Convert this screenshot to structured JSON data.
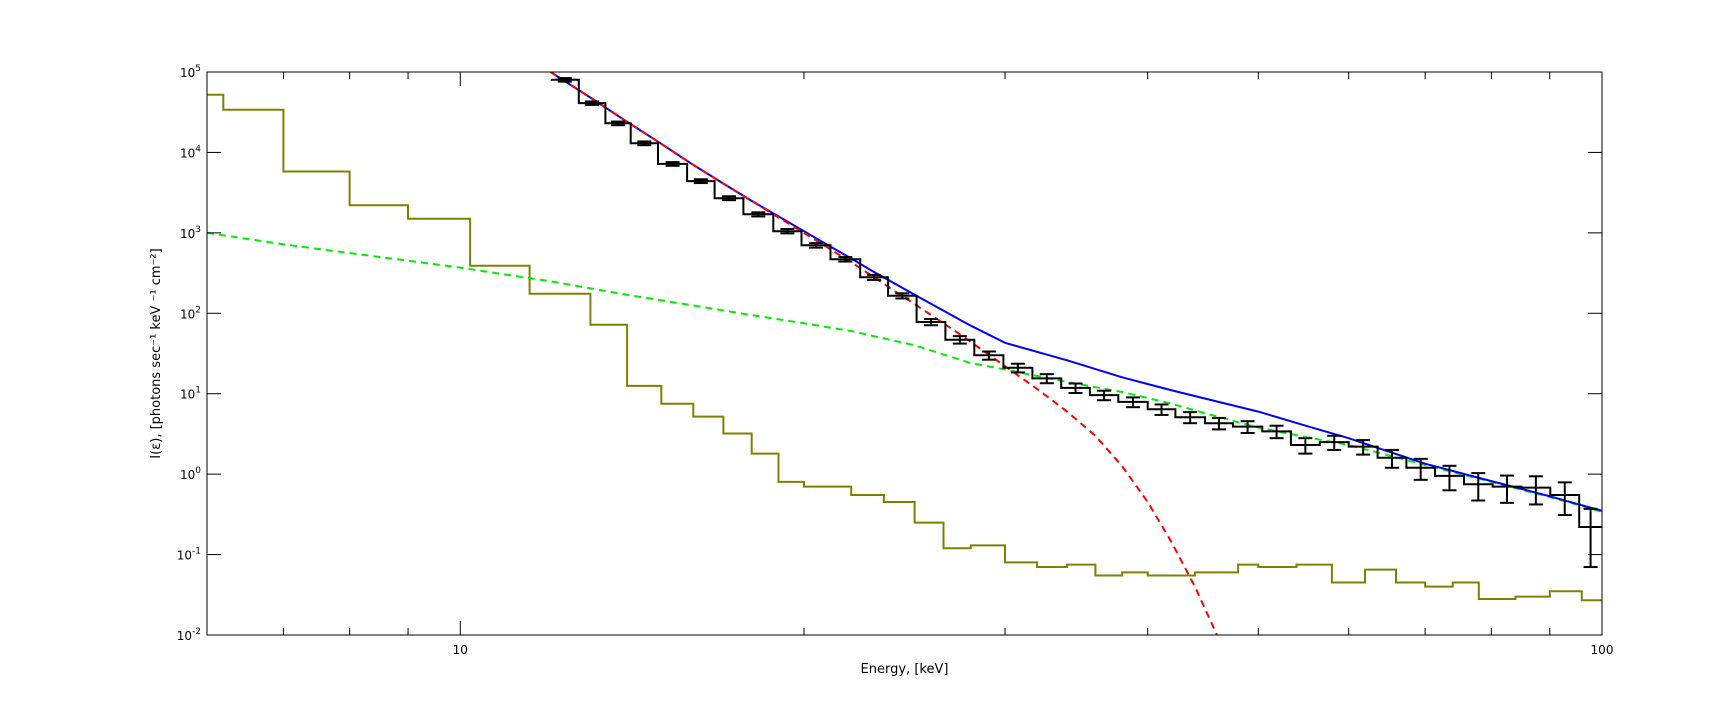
{
  "chart_data": {
    "type": "line",
    "title": "",
    "xlabel": "Energy, [keV]",
    "ylabel": "I(ε), [photons sec⁻¹ keV ⁻¹ cm⁻²]",
    "xscale": "log",
    "yscale": "log",
    "xlim": [
      6,
      100
    ],
    "ylim": [
      0.01,
      100000
    ],
    "xticks": [
      {
        "value": 10,
        "label": "10"
      },
      {
        "value": 100,
        "label": "100"
      }
    ],
    "yticks": [
      {
        "value": 0.01,
        "mantissa": "10",
        "exp": "-2"
      },
      {
        "value": 0.1,
        "mantissa": "10",
        "exp": "-1"
      },
      {
        "value": 1,
        "mantissa": "10",
        "exp": "0"
      },
      {
        "value": 10,
        "mantissa": "10",
        "exp": "1"
      },
      {
        "value": 100,
        "mantissa": "10",
        "exp": "2"
      },
      {
        "value": 1000,
        "mantissa": "10",
        "exp": "3"
      },
      {
        "value": 10000,
        "mantissa": "10",
        "exp": "4"
      },
      {
        "value": 100000,
        "mantissa": "10",
        "exp": "5"
      }
    ],
    "grid": false,
    "legend": "none",
    "colors": {
      "data": "#000000",
      "total_fit": "#0000ff",
      "thermal": "#ff0000",
      "nonthermal": "#00ee00",
      "background": "#808000"
    },
    "series": [
      {
        "style": "histogram-with-errorbars",
        "color_key": "data",
        "bins": [
          {
            "lo": 12.0,
            "hi": 12.7,
            "y": 80000,
            "err": 4000
          },
          {
            "lo": 12.7,
            "hi": 13.4,
            "y": 41000,
            "err": 2000
          },
          {
            "lo": 13.4,
            "hi": 14.1,
            "y": 23000,
            "err": 1200
          },
          {
            "lo": 14.1,
            "hi": 14.9,
            "y": 13000,
            "err": 700
          },
          {
            "lo": 14.9,
            "hi": 15.8,
            "y": 7200,
            "err": 380
          },
          {
            "lo": 15.8,
            "hi": 16.7,
            "y": 4400,
            "err": 240
          },
          {
            "lo": 16.7,
            "hi": 17.7,
            "y": 2700,
            "err": 150
          },
          {
            "lo": 17.7,
            "hi": 18.8,
            "y": 1700,
            "err": 100
          },
          {
            "lo": 18.8,
            "hi": 19.9,
            "y": 1050,
            "err": 65
          },
          {
            "lo": 19.9,
            "hi": 21.1,
            "y": 700,
            "err": 45
          },
          {
            "lo": 21.1,
            "hi": 22.4,
            "y": 470,
            "err": 30
          },
          {
            "lo": 22.4,
            "hi": 23.7,
            "y": 280,
            "err": 20
          },
          {
            "lo": 23.7,
            "hi": 25.1,
            "y": 165,
            "err": 12
          },
          {
            "lo": 25.1,
            "hi": 26.6,
            "y": 78,
            "err": 7
          },
          {
            "lo": 26.6,
            "hi": 28.2,
            "y": 47,
            "err": 5
          },
          {
            "lo": 28.2,
            "hi": 29.9,
            "y": 30,
            "err": 3.5
          },
          {
            "lo": 29.9,
            "hi": 31.7,
            "y": 21,
            "err": 2.6
          },
          {
            "lo": 31.7,
            "hi": 33.6,
            "y": 15.5,
            "err": 2.0
          },
          {
            "lo": 33.6,
            "hi": 35.6,
            "y": 11.8,
            "err": 1.6
          },
          {
            "lo": 35.6,
            "hi": 37.7,
            "y": 9.6,
            "err": 1.3
          },
          {
            "lo": 37.7,
            "hi": 40.0,
            "y": 7.9,
            "err": 1.1
          },
          {
            "lo": 40.0,
            "hi": 42.3,
            "y": 6.4,
            "err": 0.95
          },
          {
            "lo": 42.3,
            "hi": 44.9,
            "y": 5.1,
            "err": 0.8
          },
          {
            "lo": 44.9,
            "hi": 47.5,
            "y": 4.3,
            "err": 0.7
          },
          {
            "lo": 47.5,
            "hi": 50.4,
            "y": 3.9,
            "err": 0.65
          },
          {
            "lo": 50.4,
            "hi": 53.4,
            "y": 3.4,
            "err": 0.6
          },
          {
            "lo": 53.4,
            "hi": 56.6,
            "y": 2.3,
            "err": 0.5
          },
          {
            "lo": 56.6,
            "hi": 60.0,
            "y": 2.5,
            "err": 0.5
          },
          {
            "lo": 60.0,
            "hi": 63.6,
            "y": 2.2,
            "err": 0.45
          },
          {
            "lo": 63.6,
            "hi": 67.4,
            "y": 1.6,
            "err": 0.4
          },
          {
            "lo": 67.4,
            "hi": 71.4,
            "y": 1.2,
            "err": 0.35
          },
          {
            "lo": 71.4,
            "hi": 75.7,
            "y": 0.95,
            "err": 0.32
          },
          {
            "lo": 75.7,
            "hi": 80.2,
            "y": 0.75,
            "err": 0.28
          },
          {
            "lo": 80.2,
            "hi": 85.0,
            "y": 0.7,
            "err": 0.26
          },
          {
            "lo": 85.0,
            "hi": 90.1,
            "y": 0.68,
            "err": 0.26
          },
          {
            "lo": 90.1,
            "hi": 95.5,
            "y": 0.55,
            "err": 0.24
          },
          {
            "lo": 95.5,
            "hi": 100.0,
            "y": 0.22,
            "err": 0.15
          }
        ]
      },
      {
        "style": "histogram",
        "color_key": "background",
        "bins": [
          {
            "lo": 6.0,
            "hi": 6.2,
            "y": 52000
          },
          {
            "lo": 6.2,
            "hi": 7.0,
            "y": 34000
          },
          {
            "lo": 7.0,
            "hi": 8.0,
            "y": 5800
          },
          {
            "lo": 8.0,
            "hi": 9.0,
            "y": 2200
          },
          {
            "lo": 9.0,
            "hi": 10.2,
            "y": 1500
          },
          {
            "lo": 10.2,
            "hi": 11.5,
            "y": 390
          },
          {
            "lo": 11.5,
            "hi": 13.0,
            "y": 175
          },
          {
            "lo": 13.0,
            "hi": 14.0,
            "y": 72
          },
          {
            "lo": 14.0,
            "hi": 15.0,
            "y": 12.5
          },
          {
            "lo": 15.0,
            "hi": 16.0,
            "y": 7.5
          },
          {
            "lo": 16.0,
            "hi": 17.0,
            "y": 5.2
          },
          {
            "lo": 17.0,
            "hi": 18.0,
            "y": 3.2
          },
          {
            "lo": 18.0,
            "hi": 19.0,
            "y": 1.8
          },
          {
            "lo": 19.0,
            "hi": 20.0,
            "y": 0.8
          },
          {
            "lo": 20.0,
            "hi": 22.0,
            "y": 0.7
          },
          {
            "lo": 22.0,
            "hi": 23.5,
            "y": 0.55
          },
          {
            "lo": 23.5,
            "hi": 25.0,
            "y": 0.45
          },
          {
            "lo": 25.0,
            "hi": 26.5,
            "y": 0.25
          },
          {
            "lo": 26.5,
            "hi": 28.0,
            "y": 0.12
          },
          {
            "lo": 28.0,
            "hi": 30.0,
            "y": 0.13
          },
          {
            "lo": 30.0,
            "hi": 32.0,
            "y": 0.08
          },
          {
            "lo": 32.0,
            "hi": 34.0,
            "y": 0.07
          },
          {
            "lo": 34.0,
            "hi": 36.0,
            "y": 0.075
          },
          {
            "lo": 36.0,
            "hi": 38.0,
            "y": 0.055
          },
          {
            "lo": 38.0,
            "hi": 40.0,
            "y": 0.06
          },
          {
            "lo": 40.0,
            "hi": 44.0,
            "y": 0.055
          },
          {
            "lo": 44.0,
            "hi": 48.0,
            "y": 0.06
          },
          {
            "lo": 48.0,
            "hi": 50.0,
            "y": 0.075
          },
          {
            "lo": 50.0,
            "hi": 54.0,
            "y": 0.07
          },
          {
            "lo": 54.0,
            "hi": 58.0,
            "y": 0.075
          },
          {
            "lo": 58.0,
            "hi": 62.0,
            "y": 0.045
          },
          {
            "lo": 62.0,
            "hi": 66.0,
            "y": 0.065
          },
          {
            "lo": 66.0,
            "hi": 70.0,
            "y": 0.045
          },
          {
            "lo": 70.0,
            "hi": 74.0,
            "y": 0.04
          },
          {
            "lo": 74.0,
            "hi": 78.0,
            "y": 0.045
          },
          {
            "lo": 78.0,
            "hi": 84.0,
            "y": 0.028
          },
          {
            "lo": 84.0,
            "hi": 90.0,
            "y": 0.03
          },
          {
            "lo": 90.0,
            "hi": 96.0,
            "y": 0.035
          },
          {
            "lo": 96.0,
            "hi": 100.0,
            "y": 0.027
          }
        ]
      },
      {
        "style": "dashed-line",
        "color_key": "nonthermal",
        "x": [
          6,
          7,
          8,
          9,
          10,
          11,
          12,
          14,
          16,
          18,
          20,
          22,
          25,
          28,
          30,
          34,
          38,
          42,
          46,
          50,
          55,
          60,
          70,
          80,
          90,
          100
        ],
        "y": [
          1000,
          720,
          560,
          450,
          370,
          300,
          250,
          170,
          125,
          95,
          75,
          60,
          40,
          24,
          20,
          14,
          10.5,
          7.5,
          5.2,
          3.8,
          2.9,
          2.3,
          1.3,
          0.8,
          0.52,
          0.34
        ]
      },
      {
        "style": "dashed-line",
        "color_key": "thermal",
        "x": [
          12,
          13,
          14,
          15,
          16,
          17,
          18,
          19,
          20,
          21,
          22,
          23,
          24,
          25,
          26,
          27,
          28,
          29,
          30,
          32,
          34,
          36,
          38,
          40,
          42,
          44,
          46
        ],
        "y": [
          100000,
          48000,
          24000,
          12800,
          7000,
          4100,
          2500,
          1550,
          1000,
          650,
          430,
          285,
          190,
          130,
          90,
          63,
          44,
          31,
          22,
          11.5,
          6.0,
          3.0,
          1.25,
          0.45,
          0.14,
          0.04,
          0.01
        ]
      },
      {
        "style": "line",
        "color_key": "total_fit",
        "x": [
          12,
          13,
          14,
          15,
          16,
          17,
          18,
          19,
          20,
          21,
          22,
          23,
          24,
          25,
          26,
          28,
          30,
          34,
          38,
          42,
          46,
          50,
          55,
          60,
          70,
          80,
          90,
          100
        ],
        "y": [
          100000,
          48000,
          24000,
          12800,
          7000,
          4100,
          2500,
          1600,
          1050,
          700,
          480,
          330,
          235,
          170,
          125,
          70,
          43,
          26,
          16,
          11,
          8.0,
          6.0,
          4.0,
          2.8,
          1.35,
          0.82,
          0.53,
          0.35
        ]
      }
    ]
  }
}
